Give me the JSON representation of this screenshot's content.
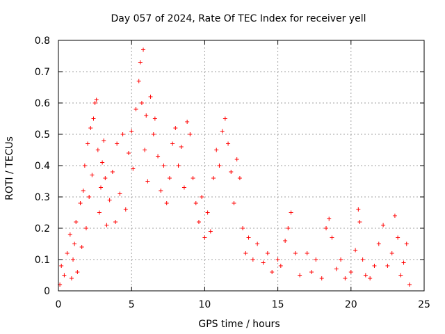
{
  "chart_data": {
    "type": "scatter",
    "title": "Day 057 of 2024, Rate Of TEC Index for receiver yell",
    "xlabel": "GPS time / hours",
    "ylabel": "ROTI / TECUs",
    "xlim": [
      0,
      25
    ],
    "ylim": [
      0,
      0.8
    ],
    "x_ticks": [
      0,
      5,
      10,
      15,
      20,
      25
    ],
    "y_ticks": [
      0,
      0.1,
      0.2,
      0.3,
      0.4,
      0.5,
      0.6,
      0.7,
      0.8
    ],
    "x_tick_labels": [
      "0",
      "5",
      "10",
      "15",
      "20",
      "25"
    ],
    "y_tick_labels": [
      "0",
      "0.1",
      "0.2",
      "0.3",
      "0.4",
      "0.5",
      "0.6",
      "0.7",
      "0.8"
    ],
    "grid": true,
    "marker": "+",
    "color": "#ff0000",
    "series": [
      {
        "name": "ROTI",
        "points": [
          [
            0.1,
            0.02
          ],
          [
            0.2,
            0.08
          ],
          [
            0.4,
            0.05
          ],
          [
            0.6,
            0.12
          ],
          [
            0.8,
            0.18
          ],
          [
            0.9,
            0.04
          ],
          [
            1.0,
            0.1
          ],
          [
            1.1,
            0.15
          ],
          [
            1.2,
            0.22
          ],
          [
            1.3,
            0.06
          ],
          [
            1.5,
            0.28
          ],
          [
            1.6,
            0.14
          ],
          [
            1.7,
            0.32
          ],
          [
            1.8,
            0.4
          ],
          [
            1.9,
            0.2
          ],
          [
            2.0,
            0.47
          ],
          [
            2.1,
            0.3
          ],
          [
            2.2,
            0.52
          ],
          [
            2.3,
            0.37
          ],
          [
            2.4,
            0.55
          ],
          [
            2.5,
            0.6
          ],
          [
            2.6,
            0.61
          ],
          [
            2.7,
            0.45
          ],
          [
            2.8,
            0.25
          ],
          [
            2.9,
            0.33
          ],
          [
            3.0,
            0.41
          ],
          [
            3.1,
            0.48
          ],
          [
            3.2,
            0.36
          ],
          [
            3.3,
            0.21
          ],
          [
            3.5,
            0.29
          ],
          [
            3.7,
            0.38
          ],
          [
            3.9,
            0.22
          ],
          [
            4.0,
            0.47
          ],
          [
            4.2,
            0.31
          ],
          [
            4.4,
            0.5
          ],
          [
            4.6,
            0.26
          ],
          [
            4.8,
            0.44
          ],
          [
            5.0,
            0.51
          ],
          [
            5.1,
            0.39
          ],
          [
            5.3,
            0.58
          ],
          [
            5.5,
            0.67
          ],
          [
            5.6,
            0.73
          ],
          [
            5.7,
            0.6
          ],
          [
            5.8,
            0.77
          ],
          [
            5.9,
            0.45
          ],
          [
            6.0,
            0.56
          ],
          [
            6.1,
            0.35
          ],
          [
            6.3,
            0.62
          ],
          [
            6.5,
            0.5
          ],
          [
            6.6,
            0.55
          ],
          [
            6.8,
            0.43
          ],
          [
            7.0,
            0.32
          ],
          [
            7.2,
            0.4
          ],
          [
            7.4,
            0.28
          ],
          [
            7.6,
            0.36
          ],
          [
            7.8,
            0.47
          ],
          [
            8.0,
            0.52
          ],
          [
            8.2,
            0.4
          ],
          [
            8.4,
            0.46
          ],
          [
            8.6,
            0.33
          ],
          [
            8.8,
            0.54
          ],
          [
            9.0,
            0.5
          ],
          [
            9.2,
            0.36
          ],
          [
            9.4,
            0.28
          ],
          [
            9.6,
            0.22
          ],
          [
            9.8,
            0.3
          ],
          [
            10.0,
            0.17
          ],
          [
            10.2,
            0.25
          ],
          [
            10.4,
            0.19
          ],
          [
            10.6,
            0.36
          ],
          [
            10.8,
            0.45
          ],
          [
            11.0,
            0.4
          ],
          [
            11.2,
            0.51
          ],
          [
            11.4,
            0.55
          ],
          [
            11.6,
            0.47
          ],
          [
            11.8,
            0.38
          ],
          [
            12.0,
            0.28
          ],
          [
            12.2,
            0.42
          ],
          [
            12.4,
            0.36
          ],
          [
            12.6,
            0.2
          ],
          [
            12.8,
            0.12
          ],
          [
            13.0,
            0.17
          ],
          [
            13.3,
            0.1
          ],
          [
            13.6,
            0.15
          ],
          [
            14.0,
            0.09
          ],
          [
            14.3,
            0.12
          ],
          [
            14.6,
            0.06
          ],
          [
            15.0,
            0.1
          ],
          [
            15.2,
            0.08
          ],
          [
            15.5,
            0.16
          ],
          [
            15.7,
            0.2
          ],
          [
            15.9,
            0.25
          ],
          [
            16.2,
            0.12
          ],
          [
            16.5,
            0.05
          ],
          [
            17.0,
            0.12
          ],
          [
            17.3,
            0.06
          ],
          [
            17.6,
            0.1
          ],
          [
            18.0,
            0.04
          ],
          [
            18.3,
            0.2
          ],
          [
            18.5,
            0.23
          ],
          [
            18.7,
            0.17
          ],
          [
            19.0,
            0.07
          ],
          [
            19.3,
            0.1
          ],
          [
            19.6,
            0.04
          ],
          [
            20.0,
            0.06
          ],
          [
            20.3,
            0.13
          ],
          [
            20.5,
            0.26
          ],
          [
            20.6,
            0.22
          ],
          [
            20.8,
            0.1
          ],
          [
            21.0,
            0.05
          ],
          [
            21.3,
            0.04
          ],
          [
            21.6,
            0.08
          ],
          [
            21.9,
            0.15
          ],
          [
            22.2,
            0.21
          ],
          [
            22.5,
            0.08
          ],
          [
            22.8,
            0.12
          ],
          [
            23.0,
            0.24
          ],
          [
            23.2,
            0.17
          ],
          [
            23.4,
            0.05
          ],
          [
            23.6,
            0.09
          ],
          [
            23.8,
            0.15
          ],
          [
            24.0,
            0.02
          ]
        ]
      }
    ]
  }
}
